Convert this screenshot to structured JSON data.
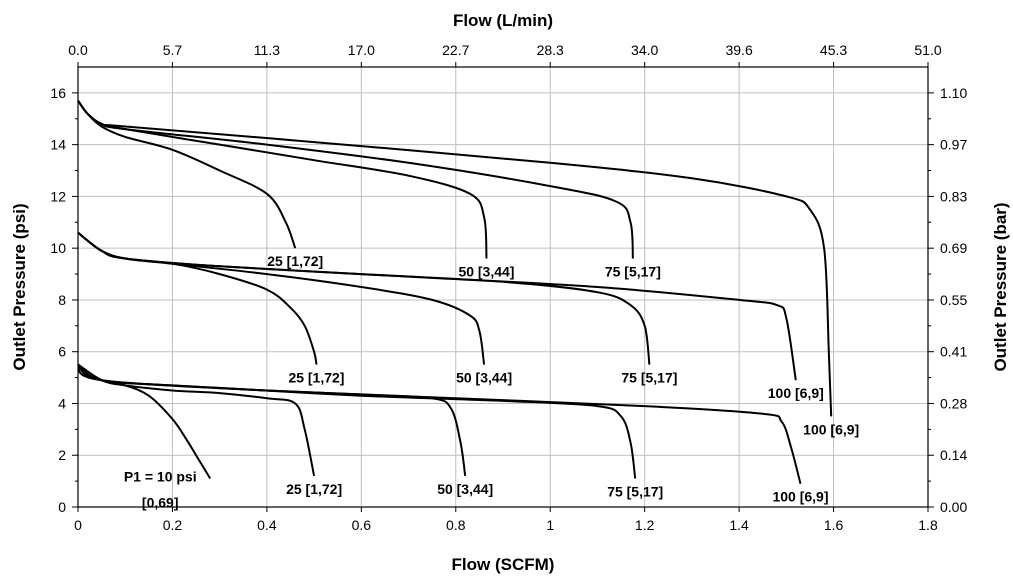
{
  "chart_data": {
    "type": "line",
    "title": "",
    "xlabel": "Flow (SCFM)",
    "ylabel": "Outlet Pressure (psi)",
    "x2label": "Flow (L/min)",
    "y2label": "Outlet Pressure (bar)",
    "xlim": [
      0,
      1.8
    ],
    "ylim": [
      0,
      17
    ],
    "x_ticks": [
      "0",
      "0.2",
      "0.4",
      "0.6",
      "0.8",
      "1",
      "1.2",
      "1.4",
      "1.6",
      "1.8"
    ],
    "y_ticks": [
      "0",
      "2",
      "4",
      "6",
      "8",
      "10",
      "12",
      "14",
      "16"
    ],
    "x2_ticks": [
      "0.0",
      "5.7",
      "11.3",
      "17.0",
      "22.7",
      "28.3",
      "34.0",
      "39.6",
      "45.3",
      "51.0"
    ],
    "y2_ticks": [
      "0.00",
      "0.14",
      "0.28",
      "0.41",
      "0.55",
      "0.69",
      "0.83",
      "0.97",
      "1.10"
    ],
    "grid": true,
    "series": [
      {
        "set": 5,
        "label": "P1 = 10 psi\n[0,69]",
        "x": [
          0,
          0.05,
          0.1,
          0.15,
          0.2,
          0.23,
          0.26,
          0.28
        ],
        "y": [
          5.5,
          4.9,
          4.7,
          4.3,
          3.4,
          2.6,
          1.7,
          1.1
        ]
      },
      {
        "set": 5,
        "label": "25 [1,72]",
        "x": [
          0,
          0.05,
          0.1,
          0.2,
          0.3,
          0.4,
          0.46,
          0.48,
          0.5
        ],
        "y": [
          5.5,
          4.9,
          4.7,
          4.5,
          4.4,
          4.2,
          4.0,
          3.0,
          1.2
        ]
      },
      {
        "set": 5,
        "label": "50 [3,44]",
        "x": [
          0,
          0.05,
          0.2,
          0.4,
          0.6,
          0.75,
          0.79,
          0.81,
          0.82
        ],
        "y": [
          5.5,
          4.9,
          4.7,
          4.5,
          4.35,
          4.2,
          3.8,
          2.5,
          1.2
        ]
      },
      {
        "set": 5,
        "label": "75 [5,17]",
        "x": [
          0,
          0.05,
          0.3,
          0.6,
          0.9,
          1.1,
          1.15,
          1.17,
          1.18
        ],
        "y": [
          5.5,
          4.9,
          4.6,
          4.3,
          4.1,
          3.9,
          3.5,
          2.5,
          1.1
        ]
      },
      {
        "set": 5,
        "label": "100 [6,9]",
        "x": [
          0,
          0.05,
          0.4,
          0.8,
          1.2,
          1.45,
          1.49,
          1.51,
          1.53
        ],
        "y": [
          5.5,
          4.9,
          4.5,
          4.2,
          3.9,
          3.6,
          3.3,
          2.3,
          0.9
        ]
      },
      {
        "set": 10,
        "label": "25 [1,72]",
        "x": [
          0,
          0.05,
          0.1,
          0.2,
          0.3,
          0.4,
          0.45,
          0.48,
          0.5,
          0.505
        ],
        "y": [
          10.6,
          9.9,
          9.6,
          9.4,
          9.0,
          8.4,
          7.7,
          7.0,
          6.0,
          5.5
        ]
      },
      {
        "set": 10,
        "label": "50 [3,44]",
        "x": [
          0,
          0.05,
          0.1,
          0.2,
          0.4,
          0.6,
          0.75,
          0.83,
          0.85,
          0.86
        ],
        "y": [
          10.6,
          9.9,
          9.6,
          9.4,
          9.0,
          8.5,
          8.0,
          7.4,
          6.8,
          5.5
        ]
      },
      {
        "set": 10,
        "label": "75 [5,17]",
        "x": [
          0,
          0.05,
          0.1,
          0.3,
          0.6,
          0.9,
          1.1,
          1.17,
          1.2,
          1.21
        ],
        "y": [
          10.6,
          9.9,
          9.6,
          9.3,
          9.0,
          8.7,
          8.3,
          7.8,
          7.0,
          5.5
        ]
      },
      {
        "set": 10,
        "label": "100 [6,9]",
        "x": [
          0,
          0.05,
          0.1,
          0.3,
          0.7,
          1.1,
          1.4,
          1.48,
          1.5,
          1.52
        ],
        "y": [
          10.6,
          9.9,
          9.6,
          9.3,
          8.9,
          8.5,
          8.0,
          7.8,
          7.3,
          4.9
        ]
      },
      {
        "set": 15,
        "label": "25 [1,72]",
        "x": [
          0,
          0.02,
          0.05,
          0.1,
          0.2,
          0.3,
          0.4,
          0.44,
          0.46
        ],
        "y": [
          15.7,
          15.2,
          14.7,
          14.3,
          13.8,
          13.0,
          12.1,
          11.0,
          10.0
        ]
      },
      {
        "set": 15,
        "label": "50 [3,44]",
        "x": [
          0,
          0.02,
          0.05,
          0.1,
          0.3,
          0.5,
          0.7,
          0.83,
          0.86,
          0.865
        ],
        "y": [
          15.7,
          15.2,
          14.8,
          14.6,
          14.0,
          13.4,
          12.8,
          12.1,
          11.2,
          9.6
        ]
      },
      {
        "set": 15,
        "label": "75 [5,17]",
        "x": [
          0,
          0.02,
          0.05,
          0.1,
          0.4,
          0.7,
          1.0,
          1.14,
          1.17,
          1.175
        ],
        "y": [
          15.7,
          15.2,
          14.8,
          14.6,
          14.0,
          13.3,
          12.4,
          11.8,
          11.0,
          9.6
        ]
      },
      {
        "set": 15,
        "label": "100 [6,9]",
        "x": [
          0,
          0.02,
          0.05,
          0.1,
          0.5,
          1.0,
          1.3,
          1.5,
          1.55,
          1.58,
          1.59,
          1.595
        ],
        "y": [
          15.7,
          15.2,
          14.8,
          14.7,
          14.1,
          13.3,
          12.7,
          12.0,
          11.5,
          10.0,
          6.0,
          3.5
        ]
      }
    ]
  }
}
